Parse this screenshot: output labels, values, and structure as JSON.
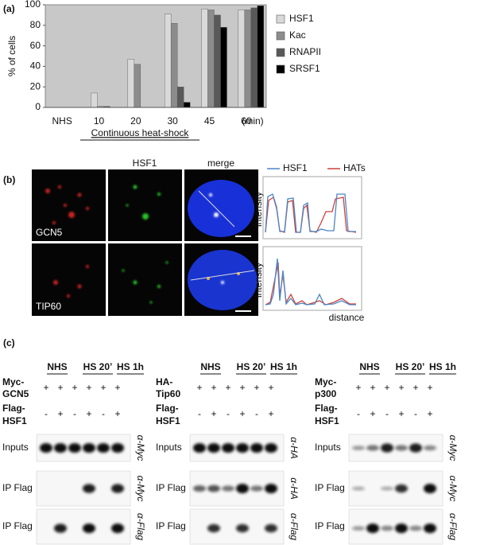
{
  "chart_data": {
    "type": "bar",
    "ylabel": "% of cells",
    "xlabel": "Continuous heat-shock",
    "x_unit": "(min)",
    "categories": [
      "NHS",
      "10",
      "20",
      "30",
      "45",
      "60"
    ],
    "series": [
      {
        "name": "HSF1",
        "color": "#d9d9d9",
        "values": [
          0,
          14,
          47,
          91,
          96,
          95
        ]
      },
      {
        "name": "Kac",
        "color": "#8c8c8c",
        "values": [
          0,
          1,
          42,
          82,
          95,
          95
        ]
      },
      {
        "name": "RNAPII",
        "color": "#595959",
        "values": [
          0,
          1,
          0,
          20,
          90,
          97
        ]
      },
      {
        "name": "SRSF1",
        "color": "#000000",
        "values": [
          0,
          0,
          0,
          5,
          78,
          99
        ]
      }
    ],
    "ylim": [
      0,
      100
    ],
    "yticks": [
      0,
      20,
      40,
      60,
      80,
      100
    ],
    "legend": "right",
    "background": "#c8c8c8"
  },
  "panel_labels": [
    "(a)",
    "(b)",
    "(c)"
  ],
  "microscopy": {
    "columns": [
      "HSF1",
      "merge"
    ],
    "rows": [
      "GCN5",
      "TIP60"
    ],
    "profile_legend": [
      {
        "name": "HSF1",
        "color": "#4a86c8"
      },
      {
        "name": "HATs",
        "color": "#d0413a"
      }
    ],
    "profile_ylabel": [
      "intensity",
      "intensity"
    ],
    "profile_xlabel": "distance"
  },
  "blots": [
    {
      "groups": [
        "NHS",
        "HS 20’",
        "HS 1h"
      ],
      "construct": [
        "Myc-",
        "GCN5"
      ],
      "construct_signs": [
        "+",
        "+",
        "+",
        "+",
        "+",
        "+"
      ],
      "flag": [
        "Flag-",
        "HSF1"
      ],
      "flag_signs": [
        "-",
        "+",
        "-",
        "+",
        "-",
        "+"
      ],
      "rows": [
        {
          "label": "Inputs",
          "antibody": "α-Myc"
        },
        {
          "label": "IP Flag",
          "antibody": "α-Myc"
        },
        {
          "label": "IP Flag",
          "antibody": "α-Flag"
        }
      ]
    },
    {
      "groups": [
        "NHS",
        "HS 20’",
        "HS 1h"
      ],
      "construct": [
        "HA-",
        "Tip60"
      ],
      "construct_signs": [
        "+",
        "+",
        "+",
        "+",
        "+",
        "+"
      ],
      "flag": [
        "Flag-",
        "HSF1"
      ],
      "flag_signs": [
        "-",
        "+",
        "-",
        "+",
        "-",
        "+"
      ],
      "rows": [
        {
          "label": "Inputs",
          "antibody": "α-HA"
        },
        {
          "label": "IP Flag",
          "antibody": "α-HA"
        },
        {
          "label": "IP Flag",
          "antibody": "α-Flag"
        }
      ]
    },
    {
      "groups": [
        "NHS",
        "HS 20’",
        "HS 1h"
      ],
      "construct": [
        "Myc-",
        "p300"
      ],
      "construct_signs": [
        "+",
        "+",
        "+",
        "+",
        "+",
        "+"
      ],
      "flag": [
        "Flag-",
        "HSF1"
      ],
      "flag_signs": [
        "-",
        "+",
        "-",
        "+",
        "-",
        "+"
      ],
      "rows": [
        {
          "label": "Inputs",
          "antibody": "α-Myc"
        },
        {
          "label": "IP Flag",
          "antibody": "α-Myc"
        },
        {
          "label": "IP Flag",
          "antibody": "α-Flag"
        }
      ]
    }
  ]
}
